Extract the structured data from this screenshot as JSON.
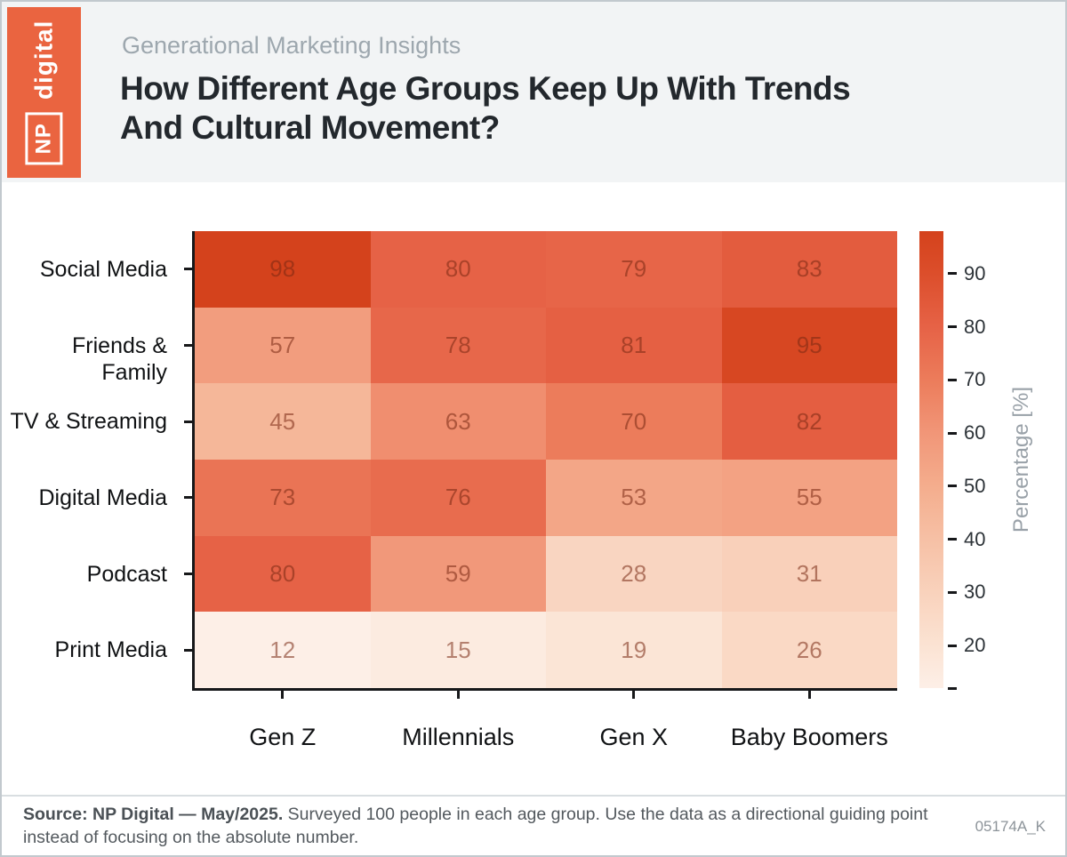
{
  "header": {
    "eyebrow": "Generational Marketing Insights",
    "title_line1": "How Different Age Groups Keep Up With Trends",
    "title_line2": "And Cultural Movement?",
    "logo": {
      "np": "NP",
      "digital": "digital",
      "color": "#ea6440"
    }
  },
  "chart_data": {
    "type": "heatmap",
    "title": "How Different Age Groups Keep Up With Trends And Cultural Movement?",
    "categories_x": [
      "Gen Z",
      "Millennials",
      "Gen X",
      "Baby Boomers"
    ],
    "categories_y": [
      "Social Media",
      "Friends & Family",
      "TV & Streaming",
      "Digital Media",
      "Podcast",
      "Print Media"
    ],
    "values": [
      [
        98,
        80,
        79,
        83
      ],
      [
        57,
        78,
        81,
        95
      ],
      [
        45,
        63,
        70,
        82
      ],
      [
        73,
        76,
        53,
        55
      ],
      [
        80,
        59,
        28,
        31
      ],
      [
        12,
        15,
        19,
        26
      ]
    ],
    "grid": false,
    "colorbar": {
      "label": "Percentage [%]",
      "ticks": [
        20,
        30,
        40,
        50,
        60,
        70,
        80,
        90
      ],
      "vmin": 12,
      "vmax": 98
    },
    "color_scale": [
      {
        "v": 12,
        "c": "#fdefe7"
      },
      {
        "v": 20,
        "c": "#fbe3d3"
      },
      {
        "v": 30,
        "c": "#f9d2bc"
      },
      {
        "v": 40,
        "c": "#f6c0a5"
      },
      {
        "v": 50,
        "c": "#f4ad8d"
      },
      {
        "v": 60,
        "c": "#f19678"
      },
      {
        "v": 70,
        "c": "#ec7c5b"
      },
      {
        "v": 80,
        "c": "#e66246"
      },
      {
        "v": 90,
        "c": "#dc4e2b"
      },
      {
        "v": 98,
        "c": "#d4421c"
      }
    ]
  },
  "footer": {
    "source_bold": "Source: NP Digital — May/2025.",
    "source_rest": " Surveyed 100 people in each age group. Use the data as a directional guiding point instead of focusing on the absolute number.",
    "code": "05174A_K"
  }
}
